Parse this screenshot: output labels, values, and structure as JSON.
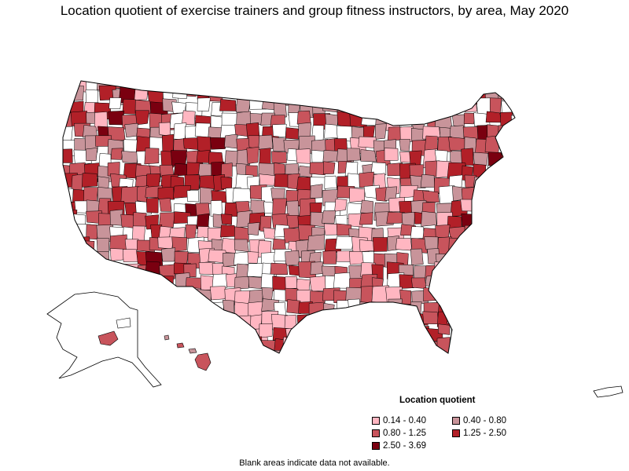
{
  "title": "Location quotient of exercise trainers and group fitness instructors, by area, May 2020",
  "legend": {
    "title": "Location quotient",
    "items": [
      {
        "label": "0.14 - 0.40",
        "color": "#ffb6c1"
      },
      {
        "label": "0.40 - 0.80",
        "color": "#c8949a"
      },
      {
        "label": "0.80 - 1.25",
        "color": "#c8545c"
      },
      {
        "label": "1.25 - 2.50",
        "color": "#b22028"
      },
      {
        "label": "2.50 - 3.69",
        "color": "#7a0010"
      }
    ]
  },
  "footnote": "Blank areas indicate data not available.",
  "colors": {
    "border": "#000000",
    "blank": "#ffffff",
    "c1": "#ffb6c1",
    "c2": "#c8949a",
    "c3": "#c8545c",
    "c4": "#b22028",
    "c5": "#7a0010"
  }
}
